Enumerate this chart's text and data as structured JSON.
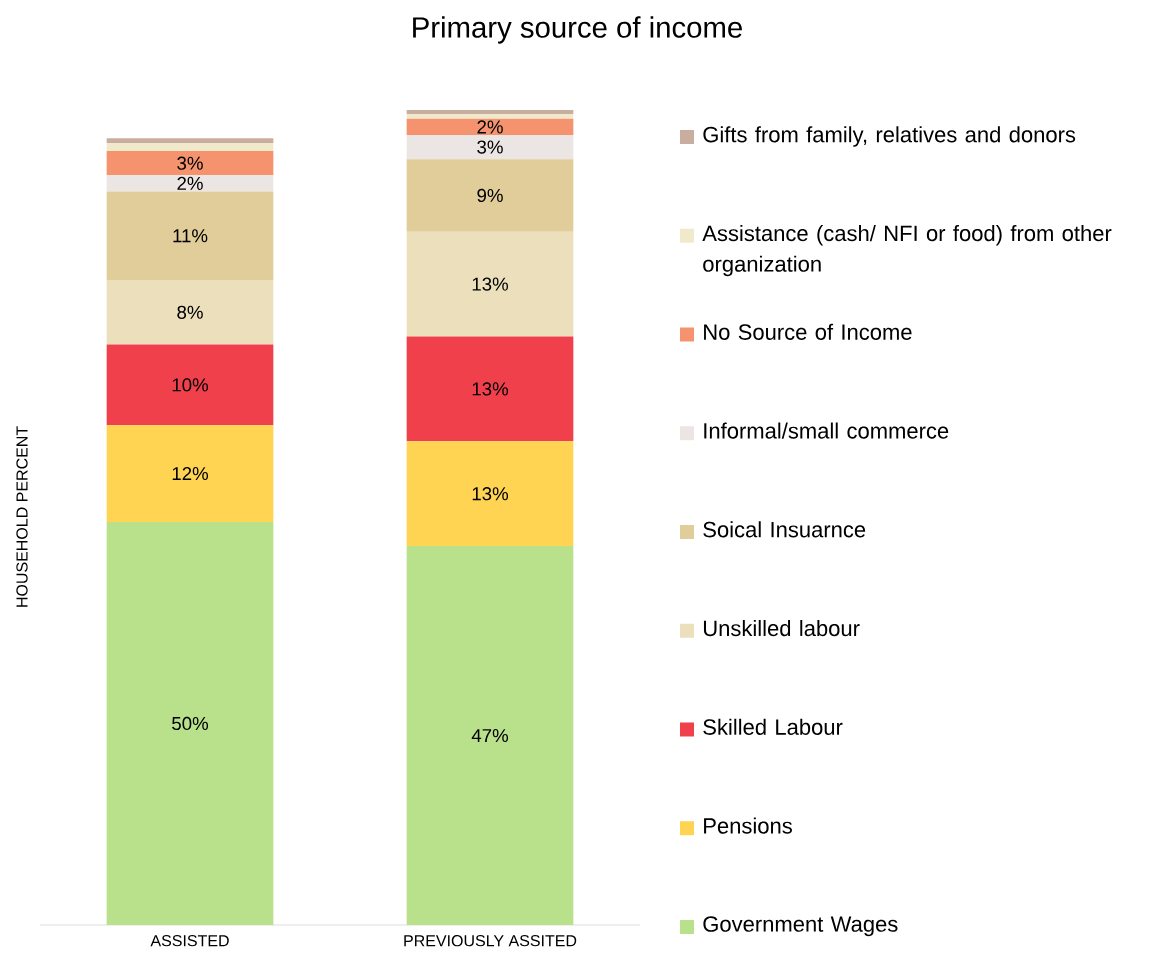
{
  "chart_data": {
    "type": "bar",
    "title": "Primary source of income",
    "ylabel": "HOUSEHOLD PERCENT",
    "categories": [
      "ASSISTED",
      "PREVIOUSLY ASSITED"
    ],
    "stacked": true,
    "legend": "right",
    "series": [
      {
        "name": "Government Wages",
        "color": "#b9e08b",
        "values": [
          50,
          47
        ],
        "value_labels": [
          "50%",
          "47%"
        ]
      },
      {
        "name": "Pensions",
        "color": "#ffd452",
        "values": [
          12,
          13
        ],
        "value_labels": [
          "12%",
          "13%"
        ]
      },
      {
        "name": "Skilled Labour",
        "color": "#f0404c",
        "values": [
          10,
          13
        ],
        "value_labels": [
          "10%",
          "13%"
        ]
      },
      {
        "name": "Unskilled labour",
        "color": "#ebdfbc",
        "values": [
          8,
          13
        ],
        "value_labels": [
          "8%",
          "13%"
        ]
      },
      {
        "name": "Soical Insuarnce",
        "color": "#e1cd99",
        "values": [
          11,
          9
        ],
        "value_labels": [
          "11%",
          "9%"
        ]
      },
      {
        "name": "Informal/small commerce",
        "color": "#ebe6e3",
        "values": [
          2,
          3
        ],
        "value_labels": [
          "2%",
          "3%"
        ]
      },
      {
        "name": "No Source of Income",
        "color": "#f6936f",
        "values": [
          3,
          2
        ],
        "value_labels": [
          "3%",
          "2%"
        ]
      },
      {
        "name": "Assistance (cash/ NFI or food) from other organization",
        "color": "#f1e9cb",
        "values": [
          1,
          0.6
        ],
        "value_labels": [
          null,
          null
        ]
      },
      {
        "name": "Gifts from family, relatives and donors",
        "color": "#c9ad9e",
        "values": [
          0.6,
          0.5
        ],
        "value_labels": [
          null,
          null
        ]
      }
    ]
  }
}
